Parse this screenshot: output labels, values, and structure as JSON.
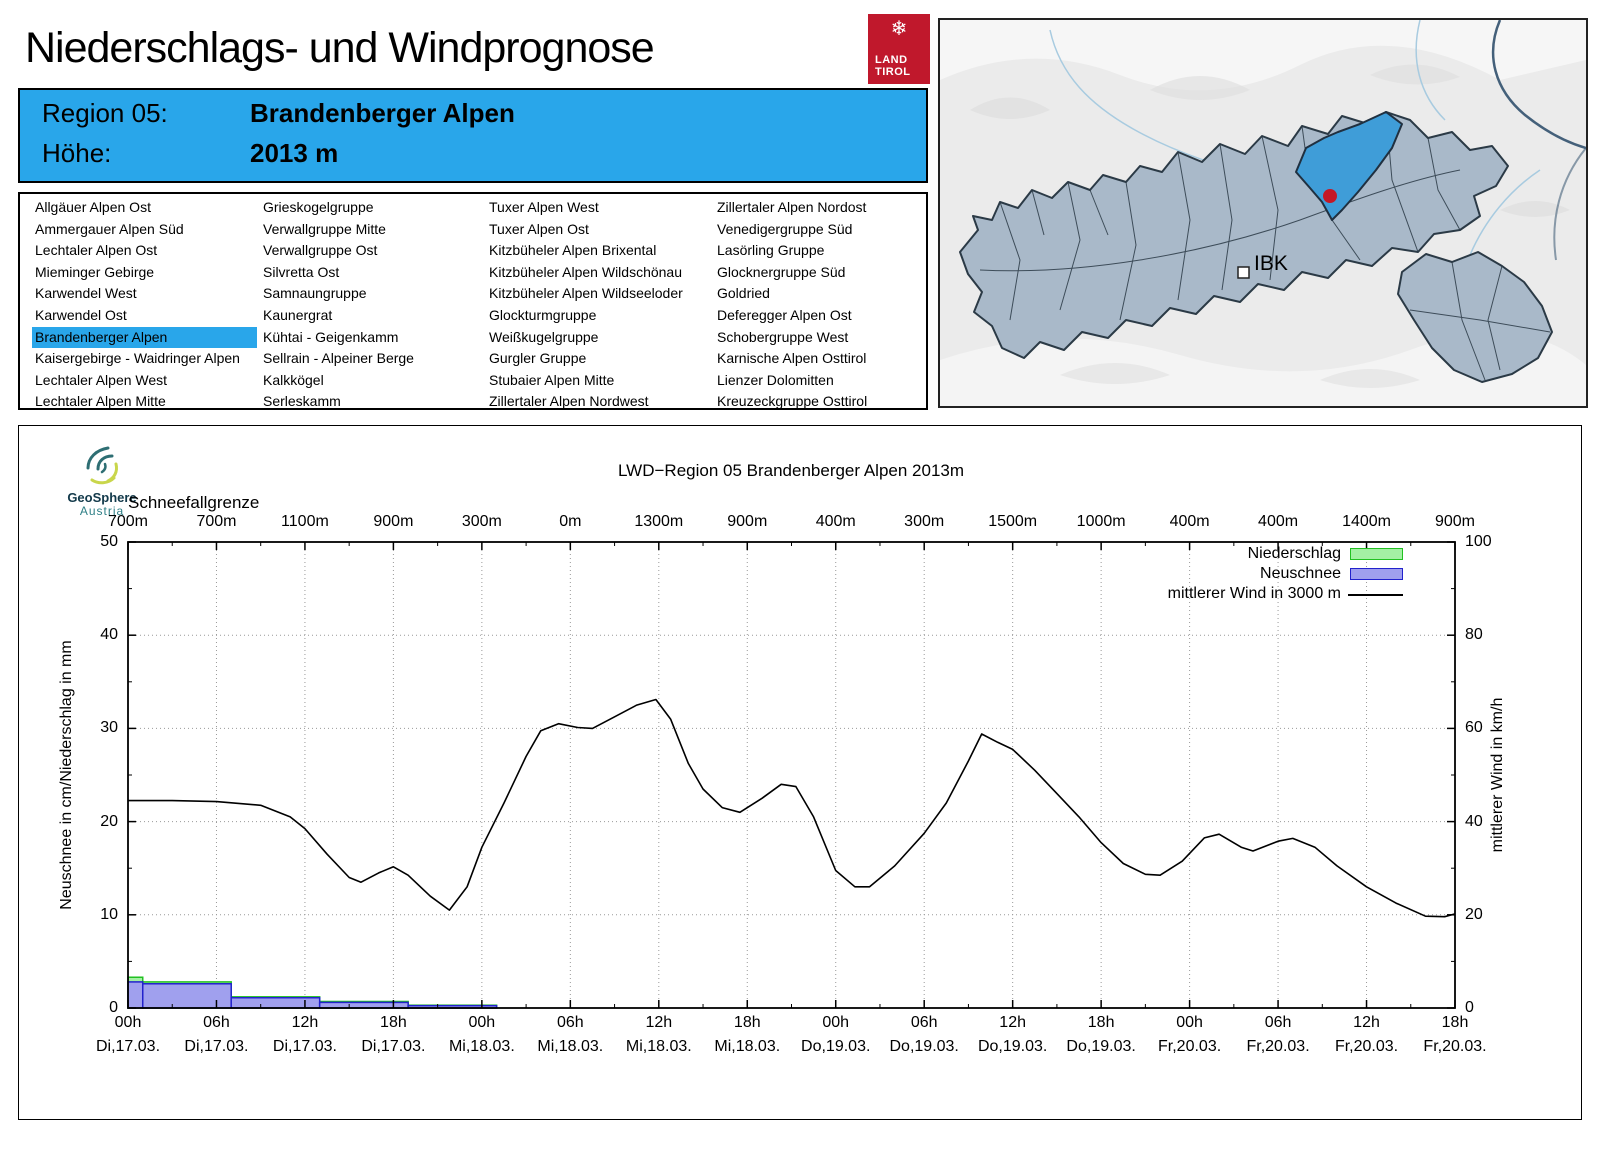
{
  "header": {
    "title": "Niederschlags- und Windprognose",
    "logo": {
      "line1": "LAND",
      "line2": "TIROL",
      "snowflake": "❄",
      "color": "#c0182c"
    }
  },
  "info_box": {
    "bg": "#29a6ea",
    "region_label": "Region 05:",
    "region_value": "Brandenberger Alpen",
    "altitude_label": "Höhe:",
    "altitude_value": "2013 m"
  },
  "region_list": {
    "selected": "Brandenberger Alpen",
    "highlight_color": "#29a6ea",
    "columns": [
      [
        "Allgäuer Alpen Ost",
        "Ammergauer Alpen Süd",
        "Lechtaler Alpen Ost",
        "Mieminger Gebirge",
        "Karwendel West",
        "Karwendel Ost",
        "Brandenberger Alpen",
        "Kaisergebirge - Waidringer Alpen",
        "Lechtaler Alpen West",
        "Lechtaler Alpen Mitte"
      ],
      [
        "Grieskogelgruppe",
        "Verwallgruppe Mitte",
        "Verwallgruppe Ost",
        "Silvretta Ost",
        "Samnaungruppe",
        "Kaunergrat",
        "Kühtai - Geigenkamm",
        "Sellrain - Alpeiner Berge",
        "Kalkkögel",
        "Serleskamm"
      ],
      [
        "Tuxer Alpen West",
        "Tuxer Alpen Ost",
        "Kitzbüheler Alpen Brixental",
        "Kitzbüheler Alpen Wildschönau",
        "Kitzbüheler Alpen Wildseeloder",
        "Glockturmgruppe",
        "Weißkugelgruppe",
        "Gurgler Gruppe",
        "Stubaier Alpen Mitte",
        "Zillertaler Alpen Nordwest"
      ],
      [
        "Zillertaler Alpen Nordost",
        "Venedigergruppe Süd",
        "Lasörling Gruppe",
        "Glocknergruppe Süd",
        "Goldried",
        "Deferegger Alpen Ost",
        "Schobergruppe West",
        "Karnische Alpen Osttirol",
        "Lienzer Dolomitten",
        "Kreuzeckgruppe Osttirol"
      ]
    ]
  },
  "map": {
    "ibk_label": "IBK",
    "bg": "#ebebeb",
    "region_fill": "#a9b9c9",
    "region_border": "#2b3a46",
    "highlight_fill": "#3f9dd8",
    "marker_color": "#c41826"
  },
  "branding": {
    "geosphere_line1": "GeoSphere",
    "geosphere_line2": "Austria"
  },
  "chart_data": {
    "type": "line+bar",
    "title": "LWD−Region 05 Brandenberger Alpen 2013m",
    "top_axis_label": "Schneefallgrenze",
    "snowline_labels": [
      "700m",
      "700m",
      "1100m",
      "900m",
      "300m",
      "0m",
      "1300m",
      "900m",
      "400m",
      "300m",
      "1500m",
      "1000m",
      "400m",
      "400m",
      "1400m",
      "900m"
    ],
    "ylabel_left": "Neuschnee in cm/Niederschlag in mm",
    "ylabel_right": "mittlerer Wind in km/h",
    "ylim_left": [
      0,
      50
    ],
    "ylim_right": [
      0,
      100
    ],
    "y_ticks_left": [
      0,
      10,
      20,
      30,
      40,
      50
    ],
    "y_ticks_right": [
      0,
      20,
      40,
      60,
      80,
      100
    ],
    "x_hours_total": 90,
    "x_tick_step_h": 6,
    "grid": true,
    "legend_position": "top-right",
    "x_ticks": [
      {
        "time": "00h",
        "day": "Di,17.03."
      },
      {
        "time": "06h",
        "day": "Di,17.03."
      },
      {
        "time": "12h",
        "day": "Di,17.03."
      },
      {
        "time": "18h",
        "day": "Di,17.03."
      },
      {
        "time": "00h",
        "day": "Mi,18.03."
      },
      {
        "time": "06h",
        "day": "Mi,18.03."
      },
      {
        "time": "12h",
        "day": "Mi,18.03."
      },
      {
        "time": "18h",
        "day": "Mi,18.03."
      },
      {
        "time": "00h",
        "day": "Do,19.03."
      },
      {
        "time": "06h",
        "day": "Do,19.03."
      },
      {
        "time": "12h",
        "day": "Do,19.03."
      },
      {
        "time": "18h",
        "day": "Do,19.03."
      },
      {
        "time": "00h",
        "day": "Fr,20.03."
      },
      {
        "time": "06h",
        "day": "Fr,20.03."
      },
      {
        "time": "12h",
        "day": "Fr,20.03."
      },
      {
        "time": "18h",
        "day": "Fr,20.03."
      }
    ],
    "legend": [
      {
        "label": "Niederschlag",
        "type": "box",
        "fill": "#a4f0a4",
        "stroke": "#22c022"
      },
      {
        "label": "Neuschnee",
        "type": "box",
        "fill": "#a0a0ee",
        "stroke": "#2222cc"
      },
      {
        "label": "mittlerer Wind in 3000 m",
        "type": "line",
        "stroke": "#000000"
      }
    ],
    "bars": [
      {
        "start_h": 0,
        "end_h": 1,
        "niederschlag_mm": 3.3,
        "neuschnee_cm": 2.8
      },
      {
        "start_h": 1,
        "end_h": 7,
        "niederschlag_mm": 2.8,
        "neuschnee_cm": 2.6
      },
      {
        "start_h": 7,
        "end_h": 13,
        "niederschlag_mm": 1.2,
        "neuschnee_cm": 1.1
      },
      {
        "start_h": 13,
        "end_h": 19,
        "niederschlag_mm": 0.7,
        "neuschnee_cm": 0.6
      },
      {
        "start_h": 19,
        "end_h": 25,
        "niederschlag_mm": 0.3,
        "neuschnee_cm": 0.25
      }
    ],
    "wind_kmh_points": [
      [
        0,
        44.5
      ],
      [
        3,
        44.5
      ],
      [
        6,
        44.3
      ],
      [
        9,
        43.5
      ],
      [
        11,
        41
      ],
      [
        12,
        38.5
      ],
      [
        13.5,
        33
      ],
      [
        15,
        28
      ],
      [
        15.8,
        27
      ],
      [
        17,
        29
      ],
      [
        18,
        30.3
      ],
      [
        19,
        28.5
      ],
      [
        20.5,
        24
      ],
      [
        21.8,
        21
      ],
      [
        23,
        26
      ],
      [
        24,
        34.5
      ],
      [
        25.5,
        44
      ],
      [
        27,
        54
      ],
      [
        28,
        59.5
      ],
      [
        29.2,
        61
      ],
      [
        30.5,
        60.2
      ],
      [
        31.5,
        60
      ],
      [
        33,
        62.5
      ],
      [
        34.5,
        65
      ],
      [
        35.8,
        66.2
      ],
      [
        36.8,
        62
      ],
      [
        38,
        52.5
      ],
      [
        39,
        47
      ],
      [
        40.3,
        43
      ],
      [
        41.5,
        42
      ],
      [
        43,
        45
      ],
      [
        44.3,
        48
      ],
      [
        45.3,
        47.5
      ],
      [
        46.5,
        41
      ],
      [
        48,
        29.5
      ],
      [
        49.3,
        26
      ],
      [
        50.3,
        26
      ],
      [
        52,
        30.5
      ],
      [
        54,
        37.5
      ],
      [
        55.5,
        44
      ],
      [
        57,
        53
      ],
      [
        57.9,
        58.8
      ],
      [
        59,
        57
      ],
      [
        60,
        55.5
      ],
      [
        61.5,
        51
      ],
      [
        63,
        46
      ],
      [
        64.5,
        41
      ],
      [
        66,
        35.5
      ],
      [
        67.5,
        31
      ],
      [
        69,
        28.7
      ],
      [
        70,
        28.5
      ],
      [
        71.5,
        31.5
      ],
      [
        73,
        36.5
      ],
      [
        74,
        37.3
      ],
      [
        75.5,
        34.5
      ],
      [
        76.3,
        33.7
      ],
      [
        78,
        35.8
      ],
      [
        79,
        36.4
      ],
      [
        80.5,
        34.5
      ],
      [
        82,
        30.5
      ],
      [
        84,
        26
      ],
      [
        86,
        22.5
      ],
      [
        88,
        19.7
      ],
      [
        89.3,
        19.6
      ],
      [
        90,
        20.2
      ]
    ]
  }
}
